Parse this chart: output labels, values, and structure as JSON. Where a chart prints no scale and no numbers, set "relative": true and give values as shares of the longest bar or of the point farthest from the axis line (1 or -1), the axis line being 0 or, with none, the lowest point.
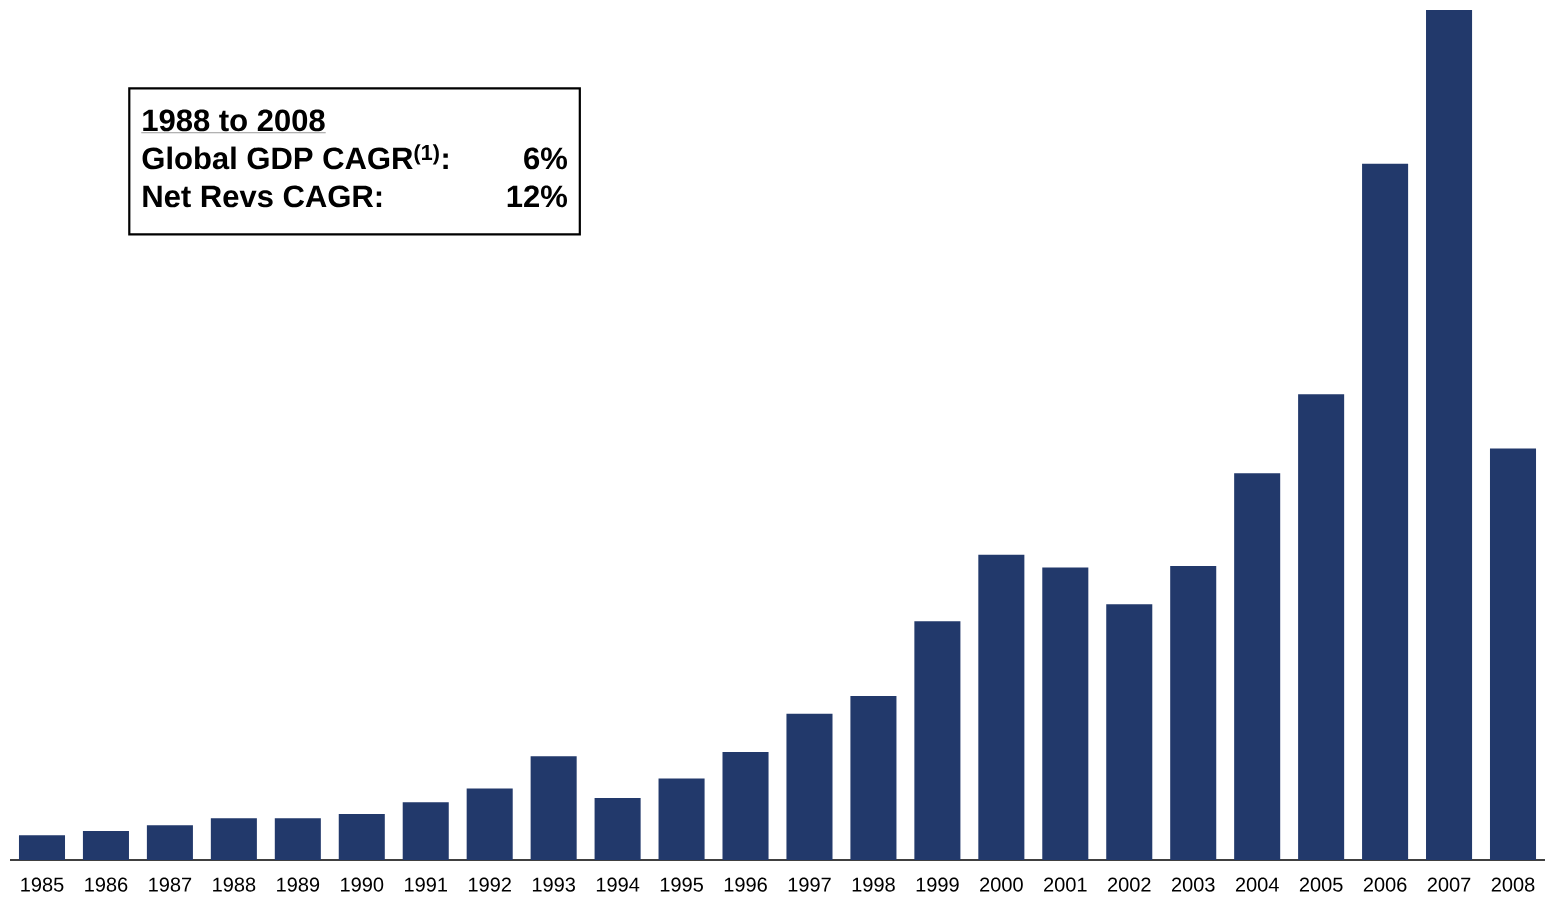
{
  "chart_data": {
    "type": "bar",
    "relative": true,
    "color": "#22396b",
    "categories": [
      "1985",
      "1986",
      "1987",
      "1988",
      "1989",
      "1990",
      "1991",
      "1992",
      "1993",
      "1994",
      "1995",
      "1996",
      "1997",
      "1998",
      "1999",
      "2000",
      "2001",
      "2002",
      "2003",
      "2004",
      "2005",
      "2006",
      "2007",
      "2008"
    ],
    "values": [
      0.029,
      0.034,
      0.041,
      0.049,
      0.049,
      0.054,
      0.068,
      0.084,
      0.122,
      0.073,
      0.096,
      0.127,
      0.172,
      0.193,
      0.281,
      0.359,
      0.344,
      0.301,
      0.346,
      0.455,
      0.548,
      0.819,
      1,
      0.484
    ],
    "annotations": [
      "1988 to 2008",
      "Global GDP CAGR$^{(1)}$:",
      "6%",
      "Net Revs CAGR:",
      "12%"
    ]
  }
}
